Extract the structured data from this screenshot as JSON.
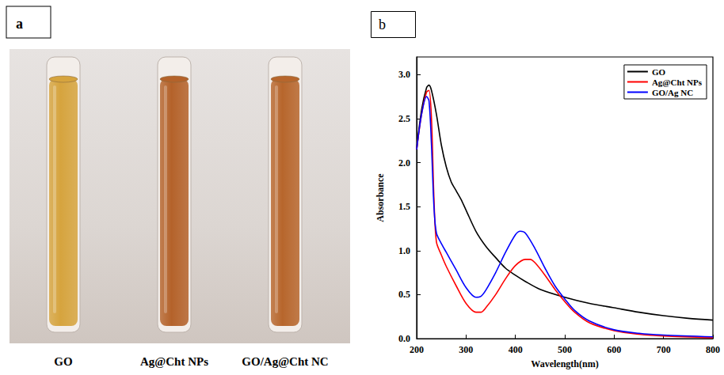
{
  "photo": {
    "panel_label": "a",
    "vials": [
      {
        "label": "GO",
        "color": "#d6a43e"
      },
      {
        "label": "Ag@Cht NPs",
        "color": "#b4622a"
      },
      {
        "label": "GO/Ag@Cht NC",
        "color": "#b7662c"
      }
    ]
  },
  "chart_data": {
    "type": "line",
    "panel_label": "b",
    "x_label": "Wavelength(nm)",
    "y_label": "Absorbance",
    "xlim": [
      200,
      800
    ],
    "xticks": [
      200,
      300,
      400,
      500,
      600,
      700,
      800
    ],
    "ylim": [
      0,
      3.2
    ],
    "yticks": [
      {
        "value": 0,
        "label": "0.0"
      },
      {
        "value": 0.5,
        "label": "0.5"
      },
      {
        "value": 1,
        "label": "1.0"
      },
      {
        "value": 1.5,
        "label": "1.5"
      },
      {
        "value": 2,
        "label": "2.0"
      },
      {
        "value": 2.5,
        "label": "2.5"
      },
      {
        "value": 3,
        "label": "3.0"
      }
    ],
    "grid": false,
    "legend": "upper right",
    "series": [
      {
        "name": "GO",
        "color": "#000000",
        "x": [
          200,
          210,
          220,
          225,
          230,
          240,
          250,
          260,
          270,
          280,
          290,
          300,
          320,
          340,
          360,
          380,
          400,
          420,
          450,
          500,
          550,
          600,
          650,
          700,
          750,
          800
        ],
        "values": [
          2.15,
          2.6,
          2.85,
          2.88,
          2.82,
          2.55,
          2.2,
          1.95,
          1.78,
          1.68,
          1.58,
          1.46,
          1.22,
          1.05,
          0.92,
          0.8,
          0.72,
          0.65,
          0.56,
          0.47,
          0.4,
          0.35,
          0.3,
          0.26,
          0.23,
          0.21
        ]
      },
      {
        "name": "Ag@Cht NPs",
        "color": "#ff0000",
        "x": [
          200,
          210,
          220,
          225,
          230,
          235,
          240,
          250,
          260,
          280,
          300,
          320,
          330,
          340,
          360,
          380,
          400,
          420,
          430,
          440,
          460,
          480,
          500,
          520,
          550,
          600,
          650,
          700,
          800
        ],
        "values": [
          2.15,
          2.55,
          2.8,
          2.82,
          2.5,
          1.6,
          1.1,
          0.95,
          0.82,
          0.6,
          0.4,
          0.3,
          0.3,
          0.35,
          0.5,
          0.68,
          0.83,
          0.9,
          0.9,
          0.86,
          0.72,
          0.56,
          0.42,
          0.3,
          0.18,
          0.09,
          0.05,
          0.03,
          0.01
        ]
      },
      {
        "name": "GO/Ag NC",
        "color": "#0000ff",
        "x": [
          200,
          210,
          220,
          225,
          230,
          235,
          240,
          250,
          260,
          280,
          300,
          320,
          330,
          340,
          360,
          380,
          400,
          410,
          420,
          440,
          460,
          480,
          500,
          520,
          550,
          600,
          650,
          700,
          800
        ],
        "values": [
          2.15,
          2.55,
          2.75,
          2.7,
          2.2,
          1.5,
          1.2,
          1.08,
          0.98,
          0.78,
          0.58,
          0.47,
          0.48,
          0.55,
          0.75,
          0.98,
          1.18,
          1.22,
          1.2,
          1.02,
          0.8,
          0.6,
          0.45,
          0.32,
          0.2,
          0.1,
          0.06,
          0.04,
          0.02
        ]
      }
    ]
  }
}
